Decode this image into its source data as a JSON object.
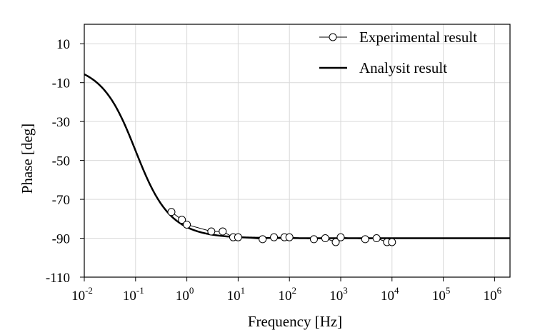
{
  "chart_data": {
    "type": "line",
    "xlabel": "Frequency [Hz]",
    "ylabel": "Phase [deg]",
    "x_scale": "log",
    "xlim": [
      0.01,
      2000000
    ],
    "ylim": [
      -110,
      20
    ],
    "grid": true,
    "legend_position": "top-right",
    "x_ticks": [
      {
        "value": 0.01,
        "base": "10",
        "exp": "-2"
      },
      {
        "value": 0.1,
        "base": "10",
        "exp": "-1"
      },
      {
        "value": 1,
        "base": "10",
        "exp": "0"
      },
      {
        "value": 10,
        "base": "10",
        "exp": "1"
      },
      {
        "value": 100,
        "base": "10",
        "exp": "2"
      },
      {
        "value": 1000,
        "base": "10",
        "exp": "3"
      },
      {
        "value": 10000,
        "base": "10",
        "exp": "4"
      },
      {
        "value": 100000,
        "base": "10",
        "exp": "5"
      },
      {
        "value": 1000000,
        "base": "10",
        "exp": "6"
      }
    ],
    "y_ticks": [
      {
        "value": 10,
        "label": "10"
      },
      {
        "value": -10,
        "label": "-10"
      },
      {
        "value": -30,
        "label": "-30"
      },
      {
        "value": -50,
        "label": "-50"
      },
      {
        "value": -70,
        "label": "-70"
      },
      {
        "value": -90,
        "label": "-90"
      },
      {
        "value": -110,
        "label": "-110"
      }
    ],
    "series": [
      {
        "name": "Experimental result",
        "style": "line-with-circle-markers",
        "color": "#000000",
        "x": [
          0.5,
          0.8,
          1,
          3,
          5,
          8,
          10,
          30,
          50,
          80,
          100,
          300,
          500,
          800,
          1000,
          3000,
          5000,
          8000,
          10000
        ],
        "y": [
          -76.5,
          -80.5,
          -83,
          -86.5,
          -86.5,
          -89.5,
          -89.5,
          -90.5,
          -89.5,
          -89.5,
          -89.5,
          -90.5,
          -90,
          -92,
          -89.5,
          -90.5,
          -90,
          -92,
          -92
        ]
      },
      {
        "name": "Analysit result",
        "style": "line",
        "color": "#000000",
        "function": "first-order phase, corner frequency 0.1 Hz"
      }
    ]
  }
}
